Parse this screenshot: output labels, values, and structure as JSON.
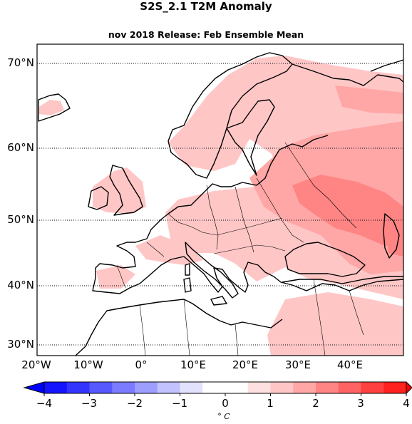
{
  "title": "S2S_2.1 T2M Anomaly",
  "subtitle": "nov 2018 Release: Feb Ensemble Mean",
  "map": {
    "lat_range": [
      28,
      73
    ],
    "lon_range": [
      -20,
      50
    ],
    "lat_labels": [
      {
        "value": 70,
        "text": "70°N"
      },
      {
        "value": 60,
        "text": "60°N"
      },
      {
        "value": 50,
        "text": "50°N"
      },
      {
        "value": 40,
        "text": "40°N"
      },
      {
        "value": 30,
        "text": "30°N"
      }
    ],
    "lon_labels": [
      {
        "value": -20,
        "text": "20°W"
      },
      {
        "value": -10,
        "text": "10°W"
      },
      {
        "value": 0,
        "text": "0°"
      },
      {
        "value": 10,
        "text": "10°E"
      },
      {
        "value": 20,
        "text": "20°E"
      },
      {
        "value": 30,
        "text": "30°E"
      },
      {
        "value": 40,
        "text": "40°E"
      }
    ]
  },
  "colorbar": {
    "min": -4,
    "max": 4,
    "step": 0.5,
    "extend": "both",
    "tick_labels": [
      "−4",
      "−3",
      "−2",
      "−1",
      "0",
      "1",
      "2",
      "3",
      "4"
    ],
    "units": "° C",
    "colors": [
      "#1414ff",
      "#3434ff",
      "#5858ff",
      "#7b7bff",
      "#9e9eff",
      "#c2c2ff",
      "#e2e2ff",
      "#ffffff",
      "#ffffff",
      "#ffe0e0",
      "#ffc6c6",
      "#ffa6a6",
      "#ff8484",
      "#ff6262",
      "#ff4040",
      "#ff2020"
    ]
  },
  "anomaly_regions": [
    {
      "name": "scandinavia",
      "level": 1
    },
    {
      "name": "eastern-europe",
      "level": 2
    },
    {
      "name": "russia-core",
      "level": 3
    },
    {
      "name": "central-europe",
      "level": 1
    },
    {
      "name": "iberia-north",
      "level": 1
    },
    {
      "name": "british-isles",
      "level": 1
    },
    {
      "name": "north-africa-east",
      "level": 1
    },
    {
      "name": "caspian",
      "level": 2
    }
  ]
}
